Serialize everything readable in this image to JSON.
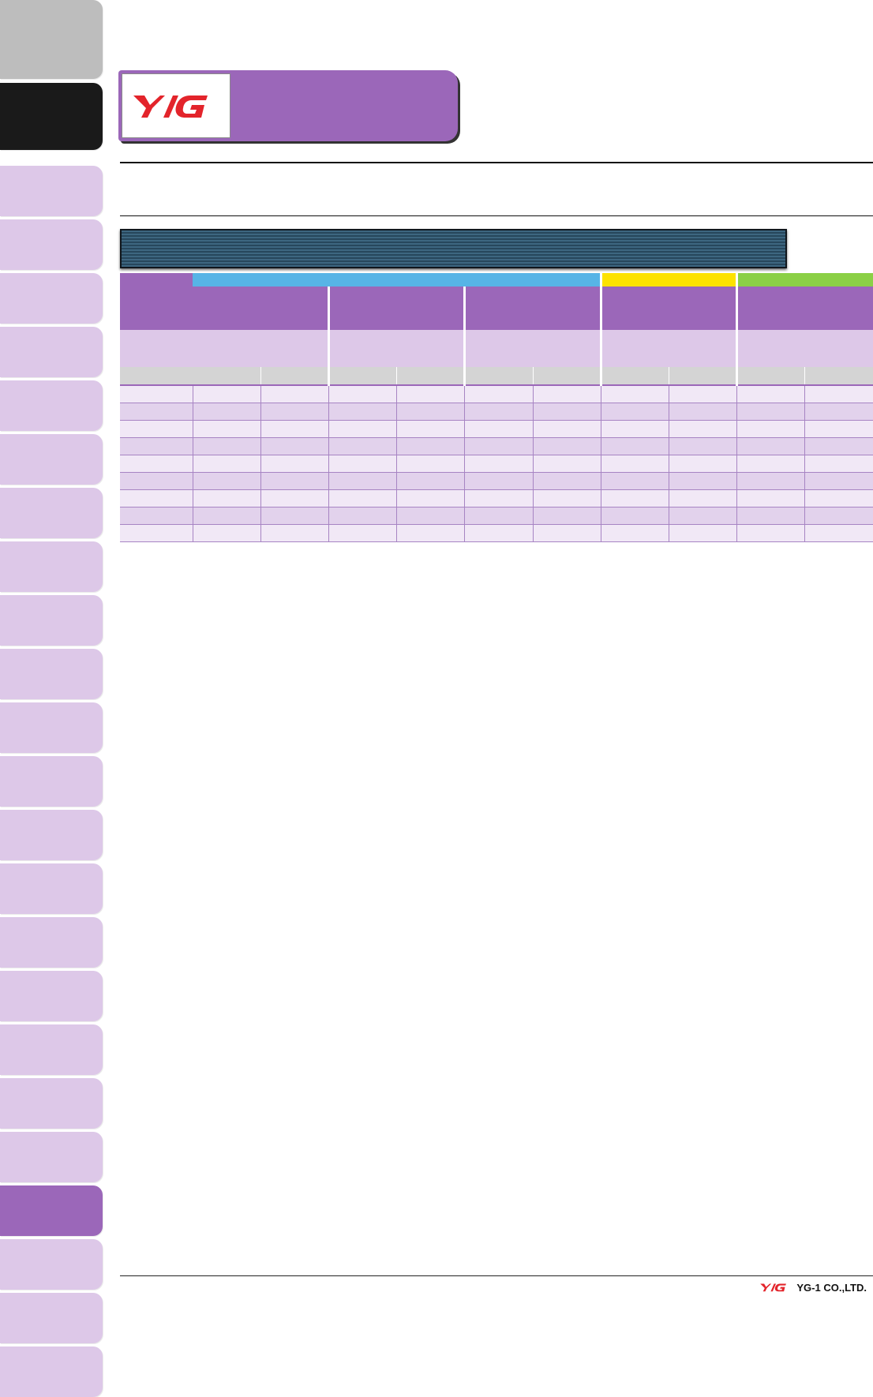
{
  "logo": {
    "mark": "YG",
    "color": "#e3242b"
  },
  "footer": {
    "company": "YG-1 CO.,LTD."
  },
  "colors": {
    "purple": "#9b67b9",
    "lavender": "#ddc8e8",
    "band_blue": "#57b4e6",
    "band_yellow": "#fde200",
    "band_green": "#8bd046",
    "active_tab": "#9b67b9"
  },
  "side_tabs": {
    "count": 25,
    "active_index": 21
  },
  "table": {
    "groups": 5,
    "rows": 9
  }
}
